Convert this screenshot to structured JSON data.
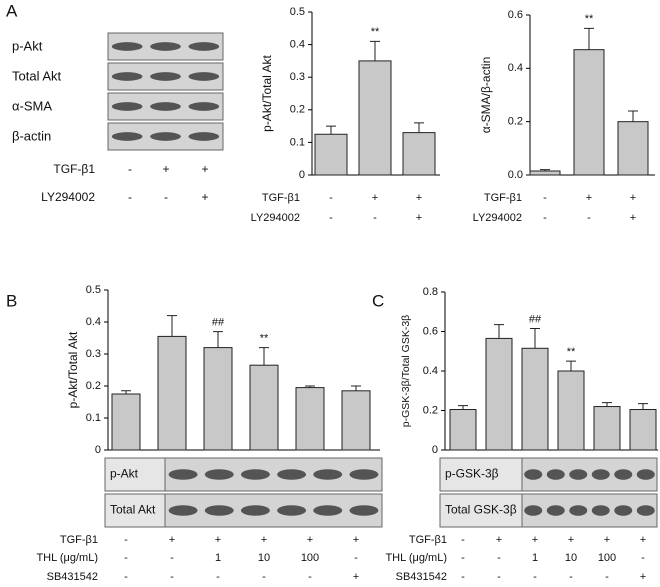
{
  "panel_labels": [
    "A",
    "B",
    "C"
  ],
  "blot_panel": {
    "rows": [
      "p-Akt",
      "Total Akt",
      "α-SMA",
      "β-actin"
    ],
    "conditions": [
      {
        "name": "TGF-β1",
        "values": [
          "-",
          "+",
          "+"
        ]
      },
      {
        "name": "LY294002",
        "values": [
          "-",
          "-",
          "+"
        ]
      }
    ]
  },
  "chart_data": [
    {
      "type": "bar",
      "ylabel": "p-Akt/Total Akt",
      "color": "#c8c8c8",
      "values": [
        0.125,
        0.35,
        0.13
      ],
      "errors": [
        0.025,
        0.06,
        0.03
      ],
      "annotations": [
        null,
        "**",
        null
      ],
      "ylim": [
        0,
        0.5
      ],
      "yticks": [
        0,
        0.1,
        0.2,
        0.3,
        0.4,
        0.5
      ],
      "conditions": [
        {
          "name": "TGF-β1",
          "values": [
            "-",
            "+",
            "+"
          ]
        },
        {
          "name": "LY294002",
          "values": [
            "-",
            "-",
            "+"
          ]
        }
      ]
    },
    {
      "type": "bar",
      "ylabel": "α-SMA/β-actin",
      "color": "#c8c8c8",
      "values": [
        0.015,
        0.47,
        0.2
      ],
      "errors": [
        0.005,
        0.08,
        0.04
      ],
      "annotations": [
        null,
        "**",
        null
      ],
      "ylim": [
        0,
        0.6
      ],
      "yticks": [
        {
          "value": 0,
          "label": "0.0"
        },
        0.2,
        0.4,
        0.6
      ],
      "conditions": [
        {
          "name": "TGF-β1",
          "values": [
            "-",
            "+",
            "+"
          ]
        },
        {
          "name": "LY294002",
          "values": [
            "-",
            "-",
            "+"
          ]
        }
      ]
    },
    {
      "type": "bar",
      "ylabel": "p-Akt/Total Akt",
      "color": "#c8c8c8",
      "values": [
        0.175,
        0.355,
        0.32,
        0.265,
        0.195,
        0.185
      ],
      "errors": [
        0.01,
        0.065,
        0.05,
        0.055,
        0.005,
        0.015
      ],
      "annotations": [
        null,
        null,
        "##",
        "**",
        null,
        null
      ],
      "ylim": [
        0,
        0.5
      ],
      "yticks": [
        0,
        0.1,
        0.2,
        0.3,
        0.4,
        0.5
      ],
      "blots": [
        "p-Akt",
        "Total Akt"
      ],
      "conditions": [
        {
          "name": "TGF-β1",
          "values": [
            "-",
            "+",
            "+",
            "+",
            "+",
            "+"
          ]
        },
        {
          "name": "THL (μg/mL)",
          "values": [
            "-",
            "-",
            "1",
            "10",
            "100",
            "-"
          ]
        },
        {
          "name": "SB431542",
          "values": [
            "-",
            "-",
            "-",
            "-",
            "-",
            "+"
          ]
        }
      ]
    },
    {
      "type": "bar",
      "ylabel": "p-GSK-3β/Total GSK-3β",
      "color": "#c8c8c8",
      "values": [
        0.205,
        0.565,
        0.515,
        0.4,
        0.22,
        0.205
      ],
      "errors": [
        0.02,
        0.07,
        0.1,
        0.05,
        0.02,
        0.03
      ],
      "annotations": [
        null,
        null,
        "##",
        "**",
        null,
        null
      ],
      "ylim": [
        0,
        0.8
      ],
      "yticks": [
        0,
        0.2,
        0.4,
        0.6,
        0.8
      ],
      "blots": [
        "p-GSK-3β",
        "Total GSK-3β"
      ],
      "conditions": [
        {
          "name": "TGF-β1",
          "values": [
            "-",
            "+",
            "+",
            "+",
            "+",
            "+"
          ]
        },
        {
          "name": "THL (μg/mL)",
          "values": [
            "-",
            "-",
            "1",
            "10",
            "100",
            "-"
          ]
        },
        {
          "name": "SB431542",
          "values": [
            "-",
            "-",
            "-",
            "-",
            "-",
            "+"
          ]
        }
      ]
    }
  ]
}
